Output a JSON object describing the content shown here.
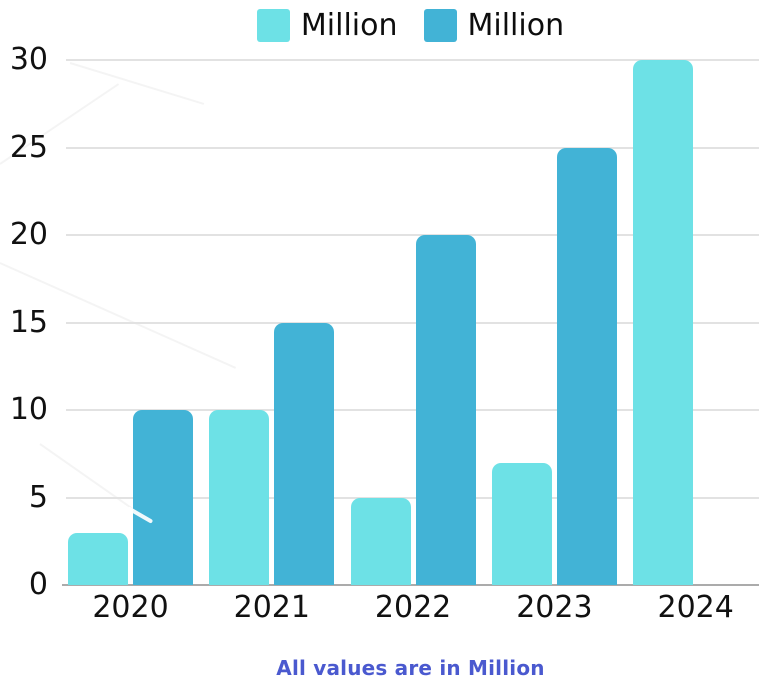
{
  "chart_data": {
    "type": "bar",
    "categories": [
      "2020",
      "2021",
      "2022",
      "2023",
      "2024"
    ],
    "series": [
      {
        "name": "Million",
        "color": "#6DE1E6",
        "values": [
          3,
          10,
          5,
          7,
          30
        ]
      },
      {
        "name": "Million",
        "color": "#42B3D6",
        "values": [
          10,
          15,
          20,
          25,
          null
        ]
      }
    ],
    "title": "",
    "xlabel": "",
    "ylabel": "",
    "ylim": [
      0,
      30
    ],
    "yticks": [
      0,
      5,
      10,
      15,
      20,
      25,
      30
    ],
    "grid": true,
    "legend_position": "top-center"
  },
  "footer": {
    "note": "All values are in Million",
    "color": "#4A59CF"
  },
  "colors": {
    "gridline": "#E2E2E2",
    "baseline": "#ABABAB",
    "axis_text": "#111111"
  }
}
